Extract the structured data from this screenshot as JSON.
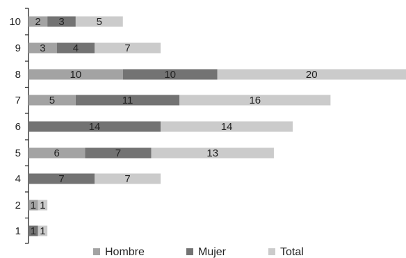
{
  "chart_data": {
    "type": "bar",
    "orientation": "horizontal",
    "stacked": true,
    "categories": [
      "10",
      "9",
      "8",
      "7",
      "6",
      "5",
      "4",
      "2",
      "1"
    ],
    "series": [
      {
        "name": "Hombre",
        "color": "#a3a3a3",
        "values": [
          2,
          3,
          10,
          5,
          0,
          6,
          0,
          1,
          0
        ],
        "labels": [
          "2",
          "3",
          "10",
          "5",
          "",
          "6",
          "",
          "1",
          ""
        ]
      },
      {
        "name": "Mujer",
        "color": "#737373",
        "values": [
          3,
          4,
          10,
          11,
          14,
          7,
          7,
          0,
          1
        ],
        "labels": [
          "3",
          "4",
          "10",
          "11",
          "14",
          "7",
          "7",
          "",
          "1"
        ]
      },
      {
        "name": "Total",
        "color": "#cbcbcb",
        "values": [
          5,
          7,
          20,
          16,
          14,
          13,
          7,
          1,
          1
        ],
        "labels": [
          "5",
          "7",
          "20",
          "16",
          "14",
          "13",
          "7",
          "1",
          "1"
        ]
      }
    ],
    "title": "",
    "xlabel": "",
    "ylabel": "",
    "xlim": [
      0,
      40
    ],
    "grid": false,
    "legend_position": "bottom"
  }
}
